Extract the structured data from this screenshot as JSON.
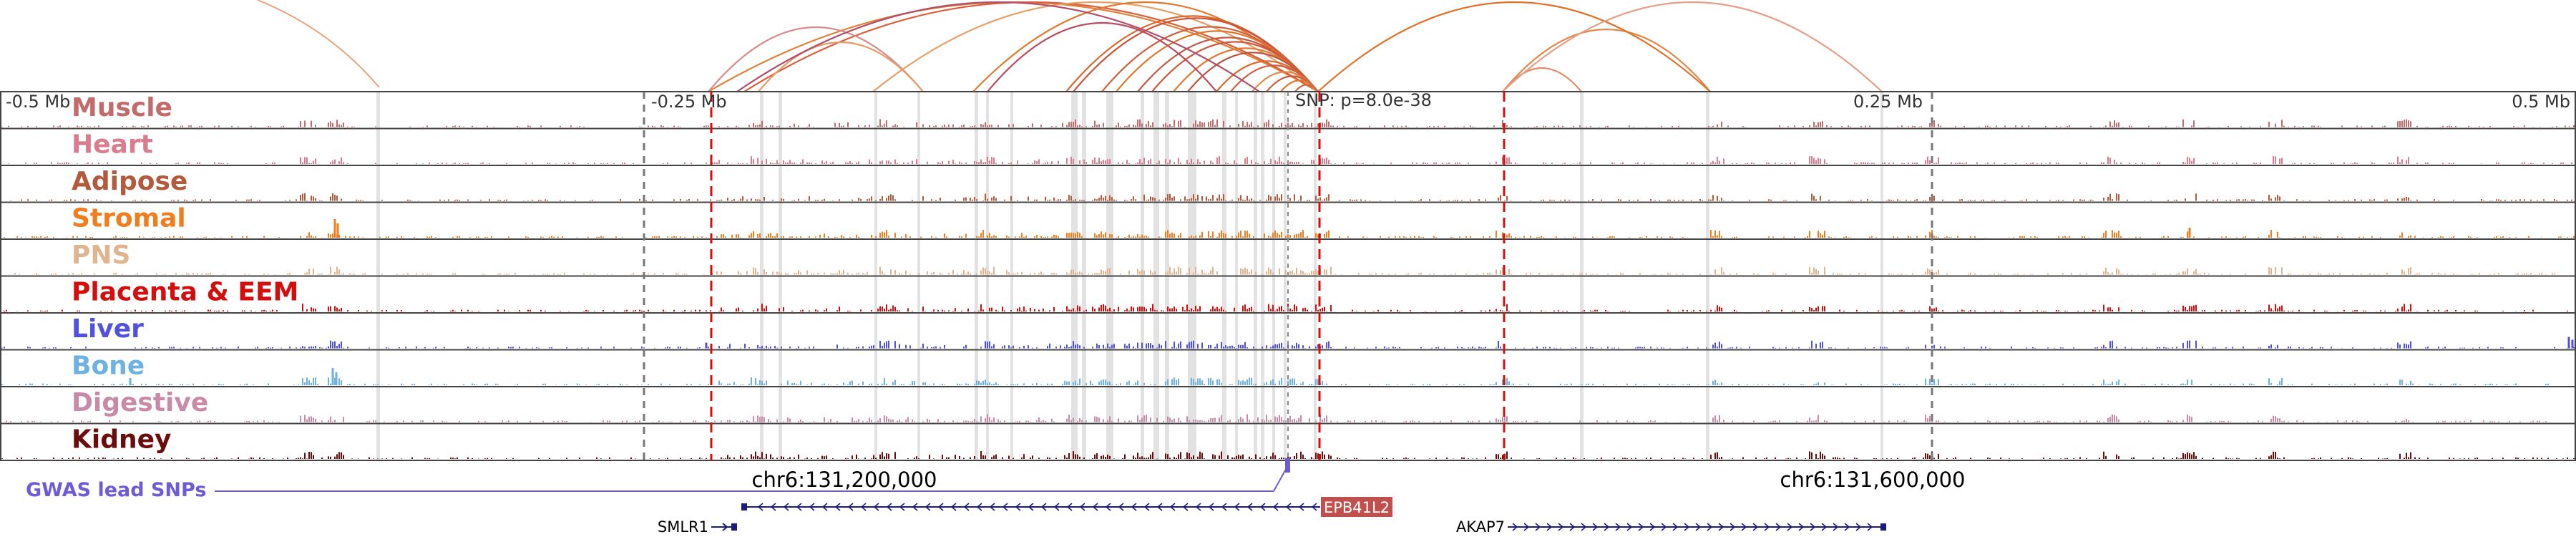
{
  "axis": {
    "scale_labels": [
      "-0.5 Mb",
      "-0.25 Mb",
      "0.25 Mb",
      "0.5 Mb"
    ],
    "snp_label": "SNP: p=8.0e-38",
    "coord_labels": [
      "chr6:131,200,000",
      "chr6:131,600,000"
    ]
  },
  "tracks": [
    {
      "name": "Muscle",
      "color": "#c36b6b"
    },
    {
      "name": "Heart",
      "color": "#db7b8e"
    },
    {
      "name": "Adipose",
      "color": "#b45a3c"
    },
    {
      "name": "Stromal",
      "color": "#f07d1e"
    },
    {
      "name": "PNS",
      "color": "#e0b48f"
    },
    {
      "name": "Placenta & EEM",
      "color": "#d40d0d"
    },
    {
      "name": "Liver",
      "color": "#5151e0"
    },
    {
      "name": "Bone",
      "color": "#6db2e0"
    },
    {
      "name": "Digestive",
      "color": "#c98aa8"
    },
    {
      "name": "Kidney",
      "color": "#6b0d0d"
    }
  ],
  "gwas": {
    "label": "GWAS lead SNPs",
    "color": "#6f5bd6"
  },
  "genes": [
    {
      "name": "SMLR1",
      "strand": "+"
    },
    {
      "name": "EPB41L2",
      "strand": "-",
      "highlight_color": "#c0504d"
    },
    {
      "name": "AKAP7",
      "strand": "+"
    }
  ]
}
